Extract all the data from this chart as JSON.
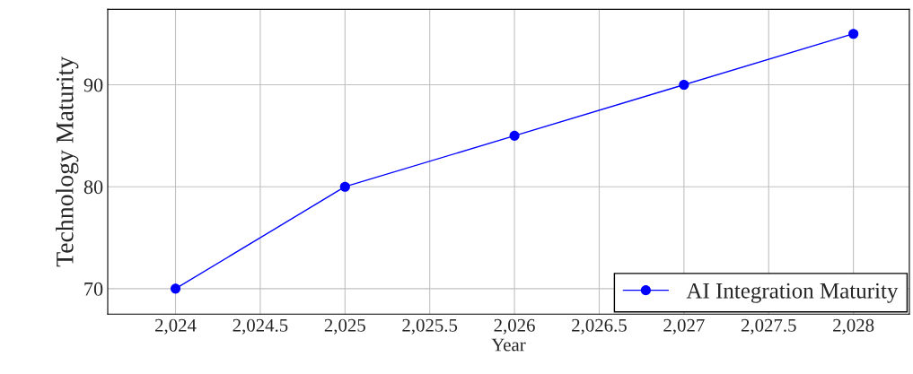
{
  "chart_data": {
    "type": "line",
    "xlabel": "Year",
    "ylabel": "Technology Maturity",
    "x": [
      2024,
      2025,
      2026,
      2027,
      2028
    ],
    "series": [
      {
        "name": "AI Integration Maturity",
        "color": "#0000ff",
        "values": [
          70,
          80,
          85,
          90,
          95
        ]
      }
    ],
    "xlim": [
      2023.6,
      2028.33
    ],
    "ylim": [
      67.5,
      97.4
    ],
    "xticks": [
      {
        "value": 2024,
        "label": "2,024"
      },
      {
        "value": 2024.5,
        "label": "2,024.5"
      },
      {
        "value": 2025,
        "label": "2,025"
      },
      {
        "value": 2025.5,
        "label": "2,025.5"
      },
      {
        "value": 2026,
        "label": "2,026"
      },
      {
        "value": 2026.5,
        "label": "2,026.5"
      },
      {
        "value": 2027,
        "label": "2,027"
      },
      {
        "value": 2027.5,
        "label": "2,027.5"
      },
      {
        "value": 2028,
        "label": "2,028"
      }
    ],
    "yticks": [
      70,
      80,
      90
    ],
    "grid": true,
    "legend": "bottom right",
    "marker": "circle",
    "line_style": "solid"
  }
}
